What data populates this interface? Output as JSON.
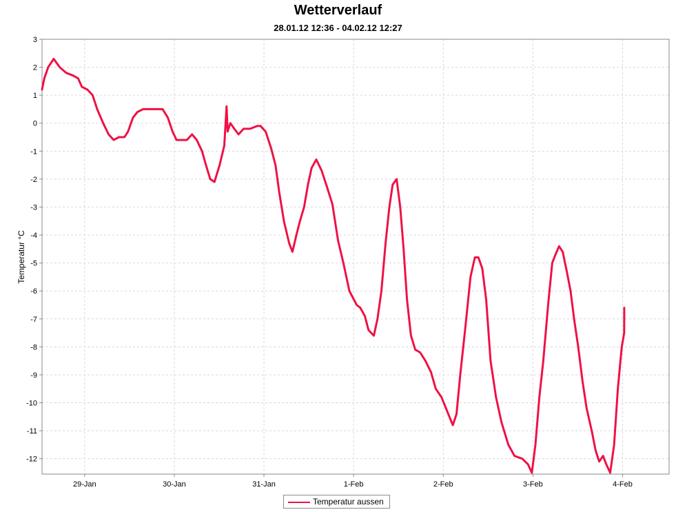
{
  "chart_data": {
    "type": "line",
    "title": "Wetterverlauf",
    "subtitle": "28.01.12 12:36 - 04.02.12 12:27",
    "ylabel": "Temperatur °C",
    "xlabel": "",
    "xlim": [
      "2012-01-28 12:36",
      "2012-02-04 12:27"
    ],
    "ylim": [
      -12.55,
      3.0
    ],
    "y_ticks": [
      3,
      2,
      1,
      0,
      -1,
      -2,
      -3,
      -4,
      -5,
      -6,
      -7,
      -8,
      -9,
      -10,
      -11,
      -12
    ],
    "x_ticks": [
      {
        "label": "29-Jan",
        "date": "2012-01-29 00:00"
      },
      {
        "label": "30-Jan",
        "date": "2012-01-30 00:00"
      },
      {
        "label": "31-Jan",
        "date": "2012-01-31 00:00"
      },
      {
        "label": "1-Feb",
        "date": "2012-02-01 00:00"
      },
      {
        "label": "2-Feb",
        "date": "2012-02-02 00:00"
      },
      {
        "label": "3-Feb",
        "date": "2012-02-03 00:00"
      },
      {
        "label": "4-Feb",
        "date": "2012-02-04 00:00"
      }
    ],
    "grid": true,
    "legend_position": "bottom-center",
    "series": [
      {
        "name": "Temperatur aussen",
        "color": "#ee1144",
        "points": [
          [
            "2012-01-28 12:36",
            1.2
          ],
          [
            "2012-01-28 13:12",
            1.6
          ],
          [
            "2012-01-28 14:15",
            2.0
          ],
          [
            "2012-01-28 15:43",
            2.3
          ],
          [
            "2012-01-28 17:20",
            2.0
          ],
          [
            "2012-01-28 19:05",
            1.8
          ],
          [
            "2012-01-28 20:58",
            1.7
          ],
          [
            "2012-01-28 22:16",
            1.6
          ],
          [
            "2012-01-28 23:16",
            1.3
          ],
          [
            "2012-01-29 00:44",
            1.2
          ],
          [
            "2012-01-29 02:08",
            1.0
          ],
          [
            "2012-01-29 03:21",
            0.5
          ],
          [
            "2012-01-29 04:58",
            0.0
          ],
          [
            "2012-01-29 06:25",
            -0.4
          ],
          [
            "2012-01-29 07:47",
            -0.6
          ],
          [
            "2012-01-29 09:12",
            -0.5
          ],
          [
            "2012-01-29 10:40",
            -0.5
          ],
          [
            "2012-01-29 11:37",
            -0.3
          ],
          [
            "2012-01-29 12:57",
            0.2
          ],
          [
            "2012-01-29 14:09",
            0.4
          ],
          [
            "2012-01-29 15:41",
            0.5
          ],
          [
            "2012-01-29 17:20",
            0.5
          ],
          [
            "2012-01-29 19:05",
            0.5
          ],
          [
            "2012-01-29 20:52",
            0.5
          ],
          [
            "2012-01-29 22:16",
            0.2
          ],
          [
            "2012-01-29 23:32",
            -0.3
          ],
          [
            "2012-01-30 00:35",
            -0.6
          ],
          [
            "2012-01-30 02:14",
            -0.6
          ],
          [
            "2012-01-30 03:22",
            -0.6
          ],
          [
            "2012-01-30 04:45",
            -0.4
          ],
          [
            "2012-01-30 06:01",
            -0.6
          ],
          [
            "2012-01-30 07:26",
            -1.0
          ],
          [
            "2012-01-30 08:29",
            -1.5
          ],
          [
            "2012-01-30 09:38",
            -2.0
          ],
          [
            "2012-01-30 10:45",
            -2.1
          ],
          [
            "2012-01-30 12:08",
            -1.5
          ],
          [
            "2012-01-30 13:23",
            -0.8
          ],
          [
            "2012-01-30 14:00",
            0.6
          ],
          [
            "2012-01-30 14:16",
            -0.3
          ],
          [
            "2012-01-30 15:01",
            0.0
          ],
          [
            "2012-01-30 16:04",
            -0.2
          ],
          [
            "2012-01-30 17:12",
            -0.4
          ],
          [
            "2012-01-30 18:33",
            -0.2
          ],
          [
            "2012-01-30 20:18",
            -0.2
          ],
          [
            "2012-01-30 22:11",
            -0.1
          ],
          [
            "2012-01-30 23:04",
            -0.1
          ],
          [
            "2012-01-31 00:27",
            -0.3
          ],
          [
            "2012-01-31 01:56",
            -0.9
          ],
          [
            "2012-01-31 03:05",
            -1.5
          ],
          [
            "2012-01-31 04:08",
            -2.5
          ],
          [
            "2012-01-31 05:21",
            -3.5
          ],
          [
            "2012-01-31 06:46",
            -4.3
          ],
          [
            "2012-01-31 07:38",
            -4.6
          ],
          [
            "2012-01-31 08:41",
            -4.0
          ],
          [
            "2012-01-31 09:38",
            -3.5
          ],
          [
            "2012-01-31 10:45",
            -3.0
          ],
          [
            "2012-01-31 11:47",
            -2.2
          ],
          [
            "2012-01-31 12:45",
            -1.6
          ],
          [
            "2012-01-31 14:01",
            -1.3
          ],
          [
            "2012-01-31 15:27",
            -1.7
          ],
          [
            "2012-01-31 16:55",
            -2.3
          ],
          [
            "2012-01-31 18:20",
            -2.9
          ],
          [
            "2012-01-31 19:50",
            -4.2
          ],
          [
            "2012-01-31 21:16",
            -5.0
          ],
          [
            "2012-01-31 22:52",
            -6.0
          ],
          [
            "2012-02-01 00:49",
            -6.5
          ],
          [
            "2012-02-01 01:47",
            -6.6
          ],
          [
            "2012-02-01 03:01",
            -6.9
          ],
          [
            "2012-02-01 04:00",
            -7.4
          ],
          [
            "2012-02-01 05:25",
            -7.6
          ],
          [
            "2012-02-01 06:23",
            -7.0
          ],
          [
            "2012-02-01 07:26",
            -6.0
          ],
          [
            "2012-02-01 08:33",
            -4.3
          ],
          [
            "2012-02-01 09:34",
            -3.0
          ],
          [
            "2012-02-01 10:27",
            -2.2
          ],
          [
            "2012-02-01 11:31",
            -2.0
          ],
          [
            "2012-02-01 12:29",
            -3.0
          ],
          [
            "2012-02-01 13:23",
            -4.5
          ],
          [
            "2012-02-01 14:17",
            -6.3
          ],
          [
            "2012-02-01 15:21",
            -7.6
          ],
          [
            "2012-02-01 16:30",
            -8.1
          ],
          [
            "2012-02-01 17:48",
            -8.2
          ],
          [
            "2012-02-01 19:14",
            -8.5
          ],
          [
            "2012-02-01 20:42",
            -8.9
          ],
          [
            "2012-02-01 22:00",
            -9.5
          ],
          [
            "2012-02-01 23:32",
            -9.8
          ],
          [
            "2012-02-02 01:02",
            -10.3
          ],
          [
            "2012-02-02 02:33",
            -10.8
          ],
          [
            "2012-02-02 03:33",
            -10.4
          ],
          [
            "2012-02-02 04:33",
            -9.0
          ],
          [
            "2012-02-02 05:50",
            -7.4
          ],
          [
            "2012-02-02 07:17",
            -5.5
          ],
          [
            "2012-02-02 08:27",
            -4.8
          ],
          [
            "2012-02-02 09:24",
            -4.8
          ],
          [
            "2012-02-02 10:27",
            -5.2
          ],
          [
            "2012-02-02 11:29",
            -6.3
          ],
          [
            "2012-02-02 12:40",
            -8.5
          ],
          [
            "2012-02-02 14:07",
            -9.8
          ],
          [
            "2012-02-02 15:36",
            -10.7
          ],
          [
            "2012-02-02 17:25",
            -11.5
          ],
          [
            "2012-02-02 19:05",
            -11.9
          ],
          [
            "2012-02-02 21:10",
            -12.0
          ],
          [
            "2012-02-02 22:40",
            -12.2
          ],
          [
            "2012-02-02 23:43",
            -12.5
          ],
          [
            "2012-02-03 00:40",
            -11.5
          ],
          [
            "2012-02-03 01:43",
            -9.8
          ],
          [
            "2012-02-03 02:46",
            -8.5
          ],
          [
            "2012-02-03 04:04",
            -6.5
          ],
          [
            "2012-02-03 05:10",
            -5.0
          ],
          [
            "2012-02-03 06:02",
            -4.7
          ],
          [
            "2012-02-03 07:00",
            -4.4
          ],
          [
            "2012-02-03 07:58",
            -4.6
          ],
          [
            "2012-02-03 09:03",
            -5.3
          ],
          [
            "2012-02-03 10:04",
            -6.0
          ],
          [
            "2012-02-03 11:01",
            -7.0
          ],
          [
            "2012-02-03 12:07",
            -8.0
          ],
          [
            "2012-02-03 13:15",
            -9.2
          ],
          [
            "2012-02-03 14:22",
            -10.2
          ],
          [
            "2012-02-03 15:44",
            -11.0
          ],
          [
            "2012-02-03 16:46",
            -11.7
          ],
          [
            "2012-02-03 17:44",
            -12.1
          ],
          [
            "2012-02-03 18:47",
            -11.9
          ],
          [
            "2012-02-03 19:38",
            -12.2
          ],
          [
            "2012-02-03 20:41",
            -12.5
          ],
          [
            "2012-02-03 21:44",
            -11.5
          ],
          [
            "2012-02-03 22:44",
            -9.5
          ],
          [
            "2012-02-03 23:47",
            -8.0
          ],
          [
            "2012-02-04 00:25",
            -7.5
          ],
          [
            "2012-02-04 00:27",
            -6.6
          ]
        ]
      }
    ]
  }
}
